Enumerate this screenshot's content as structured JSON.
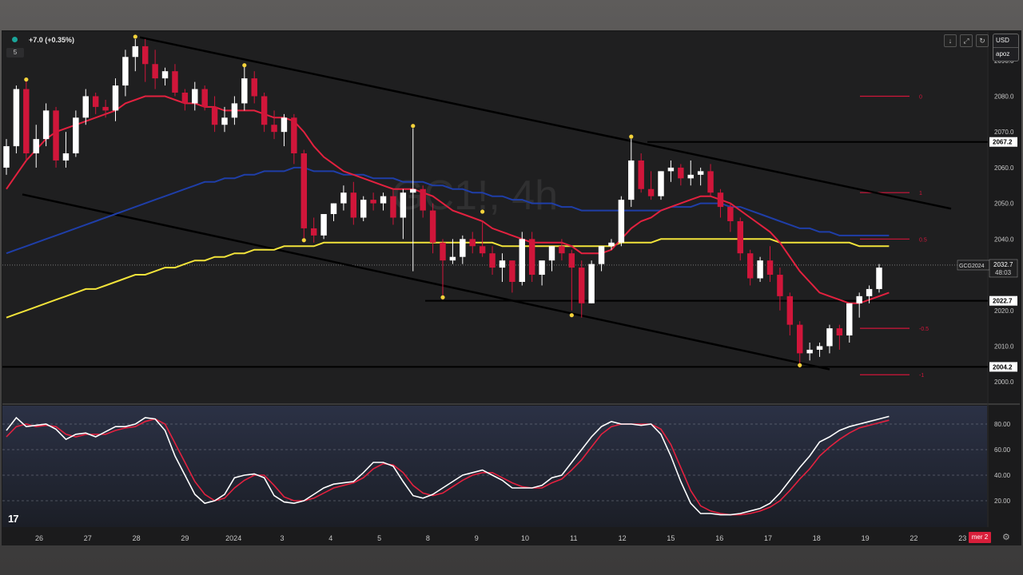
{
  "header": {
    "change_text": "+7.0 (+0.35%)",
    "interval_label": "5",
    "currency": "USD",
    "currency_sub": "apoz",
    "watermark_symbol": "GC1!, 4h",
    "toolbar_icons": [
      "arrow-down-icon",
      "fullscreen-icon",
      "refresh-icon"
    ]
  },
  "symbol_tag": {
    "symbol": "GCG2024",
    "price": "2032.7",
    "countdown": "48:03"
  },
  "price_axis": {
    "labels": [
      "2090.0",
      "2080.0",
      "2070.0",
      "2060.0",
      "2050.0",
      "2040.0",
      "2020.0",
      "2010.0",
      "2000.0"
    ],
    "values": [
      2090,
      2080,
      2070,
      2060,
      2050,
      2040,
      2020,
      2010,
      2000
    ],
    "level_tags": [
      "2067.2",
      "2022.7",
      "2004.2"
    ],
    "level_values": [
      2067.2,
      2022.7,
      2004.2
    ]
  },
  "time_axis": {
    "labels": [
      "26",
      "27",
      "28",
      "29",
      "2024",
      "3",
      "4",
      "5",
      "8",
      "9",
      "10",
      "11",
      "12",
      "15",
      "16",
      "17",
      "18",
      "19",
      "22",
      "23"
    ],
    "current_date_tag": "mer 2"
  },
  "oscillator": {
    "labels": [
      "80.00",
      "60.00",
      "40.00",
      "20.00"
    ],
    "values": [
      80,
      60,
      40,
      20
    ]
  },
  "fib_labels": [
    "0",
    "1",
    "0.5",
    "-0.5",
    "-1"
  ],
  "colors": {
    "bull": "#ffffff",
    "bear": "#d0163a",
    "ema_red": "#e3213f",
    "ma_blue": "#1f3ea8",
    "ma_yellow": "#f2e33a",
    "stoch_k": "#ffffff",
    "stoch_d": "#e3213f"
  },
  "chart_data": {
    "type": "candlestick",
    "ylim": [
      1994,
      2098
    ],
    "candles": [
      [
        2060,
        2068,
        2058,
        2066
      ],
      [
        2066,
        2083,
        2064,
        2082
      ],
      [
        2082,
        2085,
        2062,
        2064
      ],
      [
        2064,
        2072,
        2060,
        2068
      ],
      [
        2068,
        2078,
        2066,
        2076
      ],
      [
        2076,
        2077,
        2060,
        2062
      ],
      [
        2062,
        2070,
        2060,
        2064
      ],
      [
        2064,
        2076,
        2063,
        2074
      ],
      [
        2074,
        2082,
        2072,
        2080
      ],
      [
        2080,
        2081,
        2075,
        2077
      ],
      [
        2077,
        2079,
        2074,
        2076
      ],
      [
        2076,
        2085,
        2073,
        2083
      ],
      [
        2083,
        2093,
        2080,
        2091
      ],
      [
        2091,
        2096,
        2087,
        2094
      ],
      [
        2094,
        2096,
        2084,
        2089
      ],
      [
        2089,
        2093,
        2082,
        2085
      ],
      [
        2085,
        2088,
        2083,
        2087
      ],
      [
        2087,
        2089,
        2080,
        2081
      ],
      [
        2081,
        2082,
        2076,
        2078
      ],
      [
        2078,
        2084,
        2076,
        2082
      ],
      [
        2082,
        2083,
        2076,
        2077
      ],
      [
        2077,
        2080,
        2070,
        2072
      ],
      [
        2072,
        2077,
        2070,
        2074
      ],
      [
        2074,
        2080,
        2072,
        2078
      ],
      [
        2078,
        2089,
        2076,
        2085
      ],
      [
        2085,
        2087,
        2078,
        2080
      ],
      [
        2080,
        2081,
        2070,
        2072
      ],
      [
        2072,
        2076,
        2068,
        2070
      ],
      [
        2070,
        2075,
        2066,
        2074
      ],
      [
        2074,
        2075,
        2061,
        2064
      ],
      [
        2064,
        2065,
        2040,
        2043
      ],
      [
        2043,
        2046,
        2039,
        2041
      ],
      [
        2041,
        2047,
        2040,
        2047
      ],
      [
        2047,
        2050,
        2045,
        2050
      ],
      [
        2050,
        2055,
        2048,
        2053
      ],
      [
        2053,
        2056,
        2044,
        2046
      ],
      [
        2046,
        2052,
        2045,
        2051
      ],
      [
        2051,
        2053,
        2048,
        2050
      ],
      [
        2050,
        2053,
        2048,
        2052
      ],
      [
        2052,
        2054,
        2044,
        2046
      ],
      [
        2046,
        2054,
        2040,
        2053
      ],
      [
        2053,
        2071,
        2031,
        2054
      ],
      [
        2054,
        2055,
        2046,
        2048
      ],
      [
        2048,
        2050,
        2036,
        2039
      ],
      [
        2039,
        2040,
        2023,
        2034
      ],
      [
        2034,
        2040,
        2033,
        2035
      ],
      [
        2035,
        2041,
        2033,
        2040
      ],
      [
        2040,
        2042,
        2036,
        2038
      ],
      [
        2038,
        2045,
        2035,
        2036
      ],
      [
        2036,
        2038,
        2030,
        2032
      ],
      [
        2032,
        2036,
        2028,
        2034
      ],
      [
        2034,
        2034,
        2025,
        2028
      ],
      [
        2028,
        2042,
        2027,
        2040
      ],
      [
        2040,
        2042,
        2028,
        2030
      ],
      [
        2030,
        2033,
        2027,
        2034
      ],
      [
        2034,
        2038,
        2031,
        2038
      ],
      [
        2038,
        2040,
        2034,
        2036
      ],
      [
        2036,
        2037,
        2020,
        2032
      ],
      [
        2032,
        2034,
        2018,
        2022
      ],
      [
        2022,
        2034,
        2022,
        2033
      ],
      [
        2033,
        2038,
        2031,
        2038
      ],
      [
        2038,
        2040,
        2037,
        2039
      ],
      [
        2039,
        2052,
        2038,
        2051
      ],
      [
        2051,
        2068,
        2049,
        2062
      ],
      [
        2062,
        2064,
        2053,
        2054
      ],
      [
        2054,
        2059,
        2051,
        2052
      ],
      [
        2052,
        2059,
        2051,
        2059
      ],
      [
        2059,
        2062,
        2056,
        2060
      ],
      [
        2060,
        2061,
        2055,
        2057
      ],
      [
        2057,
        2062,
        2055,
        2058
      ],
      [
        2058,
        2060,
        2055,
        2059
      ],
      [
        2059,
        2061,
        2052,
        2053
      ],
      [
        2053,
        2054,
        2046,
        2049
      ],
      [
        2049,
        2050,
        2042,
        2045
      ],
      [
        2045,
        2046,
        2034,
        2036
      ],
      [
        2036,
        2037,
        2027,
        2029
      ],
      [
        2029,
        2035,
        2028,
        2034
      ],
      [
        2034,
        2038,
        2028,
        2030
      ],
      [
        2030,
        2032,
        2020,
        2024
      ],
      [
        2024,
        2025,
        2013,
        2016
      ],
      [
        2016,
        2017,
        2004,
        2008
      ],
      [
        2008,
        2011,
        2006,
        2009
      ],
      [
        2009,
        2011,
        2007,
        2010
      ],
      [
        2010,
        2016,
        2008,
        2015
      ],
      [
        2015,
        2016,
        2009,
        2013
      ],
      [
        2013,
        2022,
        2011,
        2022
      ],
      [
        2022,
        2025,
        2018,
        2024
      ],
      [
        2024,
        2027,
        2022,
        2026
      ],
      [
        2026,
        2033,
        2025,
        2032
      ]
    ],
    "ema_red": [
      2054,
      2058,
      2062,
      2065,
      2068,
      2070,
      2071,
      2072,
      2073,
      2074,
      2075,
      2076,
      2078,
      2079,
      2080,
      2080,
      2080,
      2079,
      2078,
      2078,
      2077,
      2077,
      2076,
      2076,
      2076,
      2076,
      2075,
      2074,
      2074,
      2073,
      2070,
      2066,
      2063,
      2061,
      2059,
      2058,
      2057,
      2056,
      2055,
      2054,
      2054,
      2054,
      2053,
      2052,
      2050,
      2048,
      2047,
      2046,
      2045,
      2043,
      2042,
      2041,
      2040,
      2039,
      2039,
      2039,
      2039,
      2038,
      2036,
      2036,
      2036,
      2037,
      2040,
      2043,
      2045,
      2046,
      2048,
      2049,
      2050,
      2051,
      2052,
      2052,
      2051,
      2050,
      2048,
      2046,
      2044,
      2042,
      2039,
      2035,
      2031,
      2028,
      2025,
      2024,
      2023,
      2022,
      2022,
      2023,
      2024,
      2025
    ],
    "ma_blue": [
      2036,
      2037,
      2038,
      2039,
      2040,
      2041,
      2042,
      2043,
      2044,
      2045,
      2046,
      2047,
      2048,
      2049,
      2050,
      2051,
      2052,
      2053,
      2054,
      2055,
      2056,
      2056,
      2057,
      2057,
      2058,
      2058,
      2059,
      2059,
      2059,
      2060,
      2060,
      2059,
      2059,
      2059,
      2058,
      2058,
      2058,
      2057,
      2057,
      2057,
      2056,
      2056,
      2056,
      2055,
      2055,
      2054,
      2054,
      2053,
      2053,
      2052,
      2052,
      2051,
      2051,
      2050,
      2050,
      2050,
      2049,
      2049,
      2048,
      2048,
      2048,
      2048,
      2048,
      2048,
      2048,
      2048,
      2048,
      2049,
      2049,
      2049,
      2050,
      2050,
      2050,
      2049,
      2049,
      2048,
      2047,
      2046,
      2045,
      2044,
      2043,
      2043,
      2042,
      2042,
      2041,
      2041,
      2041,
      2041,
      2041,
      2041
    ],
    "ma_yellow": [
      2018,
      2019,
      2020,
      2021,
      2022,
      2023,
      2024,
      2025,
      2026,
      2026,
      2027,
      2028,
      2029,
      2030,
      2030,
      2031,
      2032,
      2032,
      2033,
      2034,
      2034,
      2035,
      2035,
      2036,
      2036,
      2037,
      2037,
      2037,
      2038,
      2038,
      2038,
      2038,
      2039,
      2039,
      2039,
      2039,
      2039,
      2039,
      2039,
      2039,
      2039,
      2039,
      2039,
      2039,
      2039,
      2039,
      2039,
      2039,
      2039,
      2039,
      2038,
      2038,
      2038,
      2038,
      2038,
      2038,
      2038,
      2038,
      2038,
      2038,
      2038,
      2038,
      2039,
      2039,
      2039,
      2039,
      2040,
      2040,
      2040,
      2040,
      2040,
      2040,
      2040,
      2040,
      2040,
      2040,
      2040,
      2040,
      2039,
      2039,
      2039,
      2039,
      2039,
      2039,
      2039,
      2039,
      2038,
      2038,
      2038,
      2038
    ],
    "stoch_k": [
      75,
      85,
      78,
      79,
      80,
      76,
      68,
      72,
      73,
      70,
      74,
      78,
      78,
      80,
      85,
      84,
      75,
      55,
      40,
      25,
      18,
      20,
      25,
      38,
      40,
      41,
      38,
      24,
      19,
      18,
      20,
      25,
      30,
      33,
      34,
      35,
      42,
      50,
      50,
      47,
      35,
      24,
      22,
      25,
      30,
      35,
      40,
      42,
      44,
      40,
      36,
      30,
      30,
      30,
      32,
      38,
      40,
      50,
      60,
      70,
      78,
      82,
      80,
      80,
      79,
      80,
      72,
      55,
      35,
      18,
      10,
      10,
      9,
      9,
      10,
      12,
      14,
      18,
      26,
      36,
      46,
      55,
      66,
      70,
      75,
      78,
      80,
      82,
      84,
      86
    ],
    "stoch_d": [
      70,
      78,
      80,
      78,
      79,
      78,
      72,
      70,
      72,
      72,
      72,
      75,
      77,
      78,
      82,
      84,
      80,
      65,
      50,
      35,
      25,
      20,
      22,
      30,
      36,
      40,
      40,
      32,
      23,
      20,
      20,
      22,
      26,
      30,
      32,
      34,
      38,
      45,
      49,
      48,
      42,
      32,
      26,
      24,
      26,
      31,
      36,
      40,
      42,
      42,
      38,
      34,
      31,
      30,
      30,
      34,
      37,
      44,
      52,
      62,
      72,
      78,
      80,
      80,
      80,
      80,
      76,
      64,
      46,
      28,
      16,
      12,
      10,
      9,
      9,
      10,
      12,
      15,
      20,
      28,
      37,
      45,
      55,
      62,
      68,
      73,
      77,
      79,
      81,
      83
    ]
  }
}
